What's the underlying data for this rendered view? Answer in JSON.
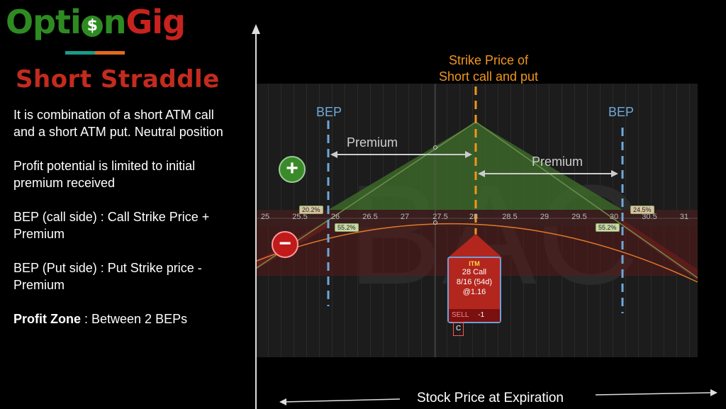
{
  "logo": {
    "part1": "Opti",
    "o_glyph": "$",
    "part2": "n",
    "part3": "Gig"
  },
  "title": "Short Straddle",
  "description": {
    "p1": "It is combination of a short ATM call and a short ATM put. Neutral position",
    "p2": "Profit potential is limited to initial premium received",
    "p3": "BEP (call side) : Call Strike Price +  Premium",
    "p4": "BEP (Put side) : Put Strike price - Premium",
    "p5_bold": "Profit Zone",
    "p5_rest": " : Between 2 BEPs"
  },
  "chart": {
    "strike_label_line1": "Strike Price of",
    "strike_label_line2": "Short call and put",
    "bep_left": "BEP",
    "bep_right": "BEP",
    "premium_left": "Premium",
    "premium_right": "Premium",
    "watermark": "BAC",
    "x_axis_title": "Stock Price  at Expiration",
    "ticks": [
      "25",
      "25.5",
      "26",
      "26.5",
      "27",
      "27.5",
      "28",
      "28.5",
      "29",
      "29.5",
      "30",
      "30.5",
      "31"
    ],
    "pct_left_top": "20.2%",
    "pct_left_bottom": "55.2%",
    "pct_right_top": "24.5%",
    "pct_right_bottom": "55.2%"
  },
  "option_card": {
    "status": "ITM",
    "line1": "28 Call",
    "line2": "8/16 (54d)",
    "line3": "@1.16",
    "action": "SELL",
    "qty": "-1",
    "type": "C"
  },
  "colors": {
    "strike": "#f0961e",
    "bep": "#6fa8d8",
    "profit": "#3f6b2a",
    "loss": "#5a1a1a"
  }
}
